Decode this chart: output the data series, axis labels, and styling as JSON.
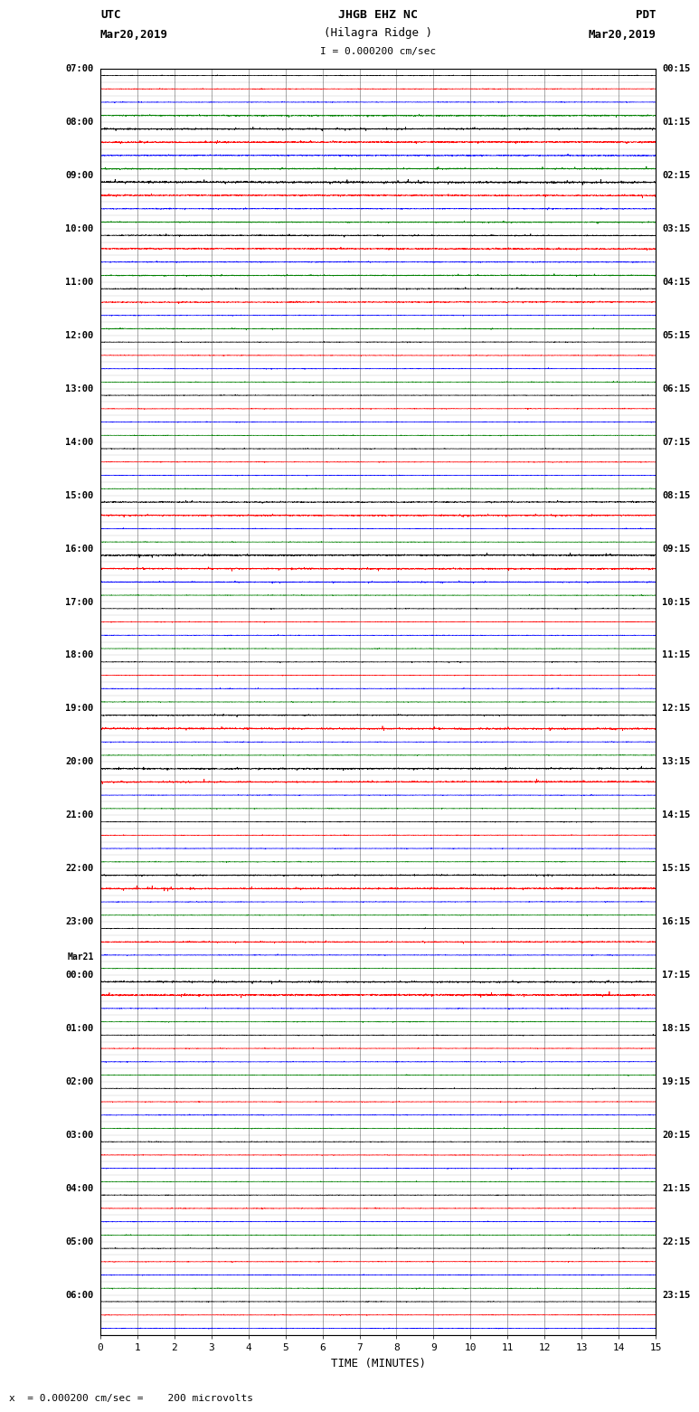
{
  "title_line1": "JHGB EHZ NC",
  "title_line2": "(Hilagra Ridge )",
  "title_scale": "I = 0.000200 cm/sec",
  "left_header_line1": "UTC",
  "left_header_line2": "Mar20,2019",
  "right_header_line1": "PDT",
  "right_header_line2": "Mar20,2019",
  "xlabel": "TIME (MINUTES)",
  "footer": "x  = 0.000200 cm/sec =    200 microvolts",
  "x_min": 0,
  "x_max": 15,
  "x_ticks": [
    0,
    1,
    2,
    3,
    4,
    5,
    6,
    7,
    8,
    9,
    10,
    11,
    12,
    13,
    14,
    15
  ],
  "background_color": "#ffffff",
  "trace_colors": [
    "black",
    "red",
    "blue",
    "green"
  ],
  "left_labels": [
    [
      "07:00",
      0
    ],
    [
      "08:00",
      4
    ],
    [
      "09:00",
      8
    ],
    [
      "10:00",
      12
    ],
    [
      "11:00",
      16
    ],
    [
      "12:00",
      20
    ],
    [
      "13:00",
      24
    ],
    [
      "14:00",
      28
    ],
    [
      "15:00",
      32
    ],
    [
      "16:00",
      36
    ],
    [
      "17:00",
      40
    ],
    [
      "18:00",
      44
    ],
    [
      "19:00",
      48
    ],
    [
      "20:00",
      52
    ],
    [
      "21:00",
      56
    ],
    [
      "22:00",
      60
    ],
    [
      "23:00",
      64
    ],
    [
      "Mar21",
      67
    ],
    [
      "00:00",
      68
    ],
    [
      "01:00",
      72
    ],
    [
      "02:00",
      76
    ],
    [
      "03:00",
      80
    ],
    [
      "04:00",
      84
    ],
    [
      "05:00",
      88
    ],
    [
      "06:00",
      92
    ]
  ],
  "right_labels": [
    [
      "00:15",
      0
    ],
    [
      "01:15",
      4
    ],
    [
      "02:15",
      8
    ],
    [
      "03:15",
      12
    ],
    [
      "04:15",
      16
    ],
    [
      "05:15",
      20
    ],
    [
      "06:15",
      24
    ],
    [
      "07:15",
      28
    ],
    [
      "08:15",
      32
    ],
    [
      "09:15",
      36
    ],
    [
      "10:15",
      40
    ],
    [
      "11:15",
      44
    ],
    [
      "12:15",
      48
    ],
    [
      "13:15",
      52
    ],
    [
      "14:15",
      56
    ],
    [
      "15:15",
      60
    ],
    [
      "16:15",
      64
    ],
    [
      "17:15",
      68
    ],
    [
      "18:15",
      72
    ],
    [
      "19:15",
      76
    ],
    [
      "20:15",
      80
    ],
    [
      "21:15",
      84
    ],
    [
      "22:15",
      88
    ],
    [
      "23:15",
      92
    ]
  ],
  "num_rows": 95,
  "rows_per_hour": 4,
  "noise_amp_tiny": 0.025,
  "noise_amp_small": 0.04,
  "noise_amp_medium": 0.12,
  "noise_amp_large": 0.28
}
